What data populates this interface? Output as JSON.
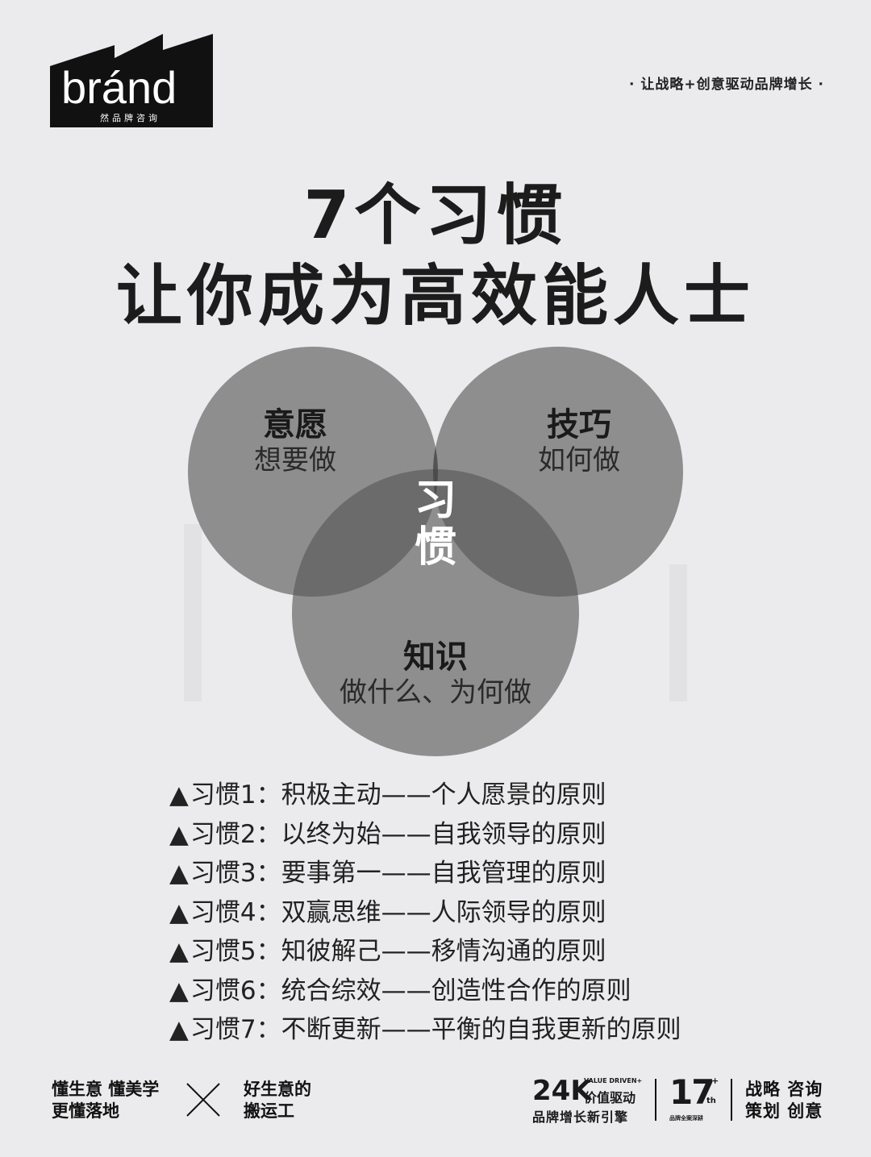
{
  "header": {
    "logo_text": "bránd",
    "logo_subtext": "然品牌咨询",
    "tagline": "· 让战略+创意驱动品牌增长 ·"
  },
  "title": {
    "line1": "7个习惯",
    "line2": "让你成为高效能人士"
  },
  "venn": {
    "circle_fill": "#555555",
    "center_fill": "#333333",
    "top_left": {
      "title": "意愿",
      "subtitle": "想要做"
    },
    "top_right": {
      "title": "技巧",
      "subtitle": "如何做"
    },
    "bottom": {
      "title": "知识",
      "subtitle": "做什么、为何做"
    },
    "center": {
      "line1": "习",
      "line2": "惯"
    }
  },
  "habits": [
    "习惯1：积极主动——个人愿景的原则",
    "习惯2：以终为始——自我领导的原则",
    "习惯3：要事第一——自我管理的原则",
    "习惯4：双赢思维——人际领导的原则",
    "习惯5：知彼解己——移情沟通的原则",
    "习惯6：统合综效——创造性合作的原则",
    "习惯7：不断更新——平衡的自我更新的原则"
  ],
  "habit_marker": "▲",
  "footer": {
    "left_line1": "懂生意 懂美学",
    "left_line2": "更懂落地",
    "mid_line1": "好生意的",
    "mid_line2": "搬运工",
    "badge24_big": "24K",
    "badge24_vd": "VALUE DRIVEN+",
    "badge24_vd2": "价值驱动",
    "badge24_sub": "品牌增长新引擎",
    "badge17_big": "17",
    "badge17_sup": "+",
    "badge17_th": "th",
    "badge17_sub": "品牌全案深耕",
    "right_line1": "战略 咨询",
    "right_line2": "策划 创意"
  }
}
